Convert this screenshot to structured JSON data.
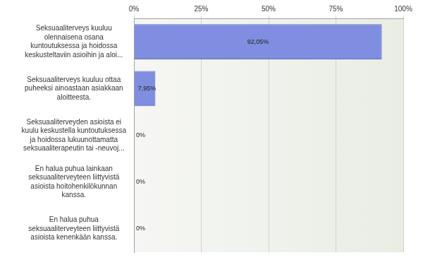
{
  "chart_data": {
    "type": "bar",
    "orientation": "horizontal",
    "categories": [
      "Seksuaaliterveys kuuluu\nolennaisena osana\nkuntoutuksessa ja hoidossa\nkeskusteltaviin asioihin ja aloi...",
      "Seksuaaliterveys kuuluu ottaa\npuheeksi ainoastaan asiakkaan\naloitteesta.",
      "Seksuaaliterveyden asioista ei\nkuulu keskustella kuntoutuksessa\nja hoidossa lukuunottamatta\nseksuaaliterapeutin tai -neuvoj...",
      "En halua puhua lainkaan\nseksuaaliterveyteen liittyvistä\nasioista hoitohenkilökunnan\nkanssa.",
      "En halua puhua\nseksuaaliterveyteen liittyvistä\nasioista kenenkään kanssa."
    ],
    "values": [
      92.05,
      7.95,
      0,
      0,
      0
    ],
    "value_labels": [
      "92,05%",
      "7,95%",
      "0%",
      "0%",
      "0%"
    ],
    "color": "#7f8ee0",
    "xlim": [
      0,
      100
    ],
    "xticks": [
      {
        "value": 0,
        "label": "0%"
      },
      {
        "value": 25,
        "label": "25%"
      },
      {
        "value": 50,
        "label": "50%"
      },
      {
        "value": 75,
        "label": "75%"
      },
      {
        "value": 100,
        "label": "100%"
      }
    ],
    "grid": true,
    "data_labels": true
  }
}
